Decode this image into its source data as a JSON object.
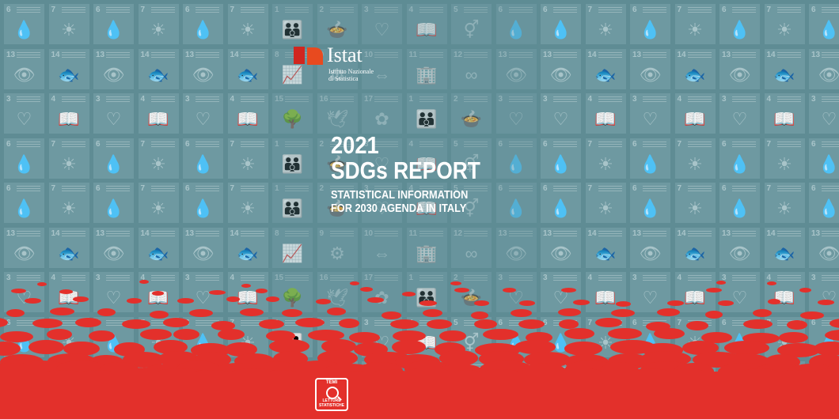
{
  "cover": {
    "logo": {
      "wordmark": "Istat",
      "subtitle_line1": "Istituto Nazionale",
      "subtitle_line2": "di Statistica",
      "colors": {
        "red": "#d1261f",
        "orange": "#e84a1f"
      }
    },
    "year": "2021",
    "title": "SDGs REPORT",
    "subtitle_line1": "STATISTICAL INFORMATION",
    "subtitle_line2": "FOR 2030 AGENDA IN ITALY",
    "badge": {
      "top": "TEMI",
      "bottom": "LETTURE STATISTICHE"
    },
    "colors": {
      "background": "#5f8c94",
      "tile": "#6e99a1",
      "accent_red": "#e3302b"
    }
  },
  "background_tiles": [
    {
      "n": "6",
      "g": "💧"
    },
    {
      "n": "7",
      "g": "☀"
    },
    {
      "n": "6",
      "g": "💧"
    },
    {
      "n": "7",
      "g": "☀"
    },
    {
      "n": "6",
      "g": "💧"
    },
    {
      "n": "7",
      "g": "☀"
    },
    {
      "n": "1",
      "g": "👪"
    },
    {
      "n": "2",
      "g": "🍲"
    },
    {
      "n": "3",
      "g": "♡"
    },
    {
      "n": "4",
      "g": "📖"
    },
    {
      "n": "5",
      "g": "⚥"
    },
    {
      "n": "6",
      "g": "💧"
    },
    {
      "n": "6",
      "g": "💧"
    },
    {
      "n": "7",
      "g": "☀"
    },
    {
      "n": "6",
      "g": "💧"
    },
    {
      "n": "7",
      "g": "☀"
    },
    {
      "n": "6",
      "g": "💧"
    },
    {
      "n": "7",
      "g": "☀"
    },
    {
      "n": "6",
      "g": "💧"
    },
    {
      "n": "7",
      "g": "☀"
    },
    {
      "n": "13",
      "g": "👁"
    },
    {
      "n": "14",
      "g": "🐟"
    },
    {
      "n": "13",
      "g": "👁"
    },
    {
      "n": "14",
      "g": "🐟"
    },
    {
      "n": "13",
      "g": "👁"
    },
    {
      "n": "14",
      "g": "🐟"
    },
    {
      "n": "8",
      "g": "📈"
    },
    {
      "n": "9",
      "g": "⚙"
    },
    {
      "n": "10",
      "g": "⇔"
    },
    {
      "n": "11",
      "g": "🏢"
    },
    {
      "n": "12",
      "g": "∞"
    },
    {
      "n": "13",
      "g": "👁"
    },
    {
      "n": "13",
      "g": "👁"
    },
    {
      "n": "14",
      "g": "🐟"
    },
    {
      "n": "13",
      "g": "👁"
    },
    {
      "n": "14",
      "g": "🐟"
    },
    {
      "n": "13",
      "g": "👁"
    },
    {
      "n": "14",
      "g": "🐟"
    },
    {
      "n": "13",
      "g": "👁"
    },
    {
      "n": "14",
      "g": "🐟"
    },
    {
      "n": "3",
      "g": "♡"
    },
    {
      "n": "4",
      "g": "📖"
    },
    {
      "n": "3",
      "g": "♡"
    },
    {
      "n": "4",
      "g": "📖"
    },
    {
      "n": "3",
      "g": "♡"
    },
    {
      "n": "4",
      "g": "📖"
    },
    {
      "n": "15",
      "g": "🌳"
    },
    {
      "n": "16",
      "g": "🕊"
    },
    {
      "n": "17",
      "g": "✿"
    },
    {
      "n": "1",
      "g": "👪"
    },
    {
      "n": "2",
      "g": "🍲"
    },
    {
      "n": "3",
      "g": "♡"
    },
    {
      "n": "3",
      "g": "♡"
    },
    {
      "n": "4",
      "g": "📖"
    },
    {
      "n": "3",
      "g": "♡"
    },
    {
      "n": "4",
      "g": "📖"
    },
    {
      "n": "3",
      "g": "♡"
    },
    {
      "n": "4",
      "g": "📖"
    },
    {
      "n": "3",
      "g": "♡"
    },
    {
      "n": "4",
      "g": "📖"
    }
  ]
}
